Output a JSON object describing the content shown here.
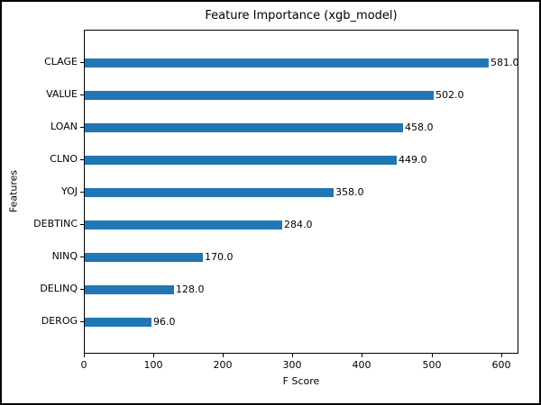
{
  "figure": {
    "background": "#ffffff",
    "border_color": "#000000"
  },
  "chart_data": {
    "type": "bar",
    "orientation": "horizontal",
    "title": "Feature Importance (xgb_model)",
    "xlabel": "F Score",
    "ylabel": "Features",
    "categories": [
      "CLAGE",
      "VALUE",
      "LOAN",
      "CLNO",
      "YOJ",
      "DEBTINC",
      "NINQ",
      "DELINQ",
      "DEROG"
    ],
    "values": [
      581.0,
      502.0,
      458.0,
      449.0,
      358.0,
      284.0,
      170.0,
      128.0,
      96.0
    ],
    "value_labels": [
      "581.0",
      "502.0",
      "458.0",
      "449.0",
      "358.0",
      "284.0",
      "170.0",
      "128.0",
      "96.0"
    ],
    "x_ticks": [
      0,
      100,
      200,
      300,
      400,
      500,
      600
    ],
    "x_tick_labels": [
      "0",
      "100",
      "200",
      "300",
      "400",
      "500",
      "600"
    ],
    "xlim": [
      0,
      625
    ],
    "bar_color": "#1f77b4",
    "text_color": "#000000",
    "grid": false,
    "legend": null
  }
}
